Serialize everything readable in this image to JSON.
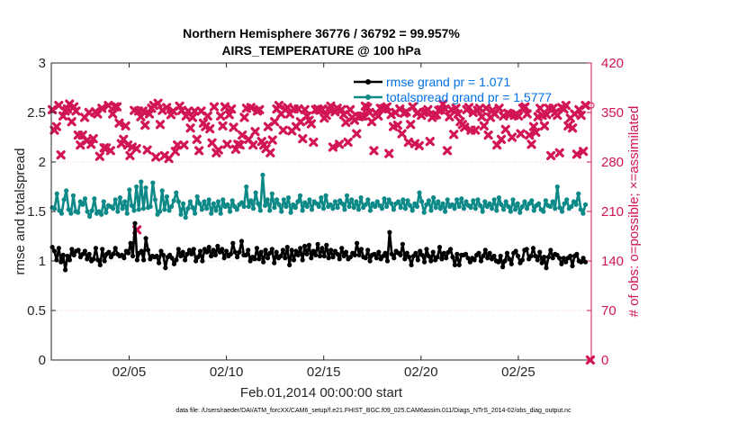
{
  "chart_data": {
    "type": "line",
    "title": "Northern Hemisphere 36776 / 36792 = 99.957%",
    "subtitle": "AIRS_TEMPERATURE @ 100 hPa",
    "xlabel": "Feb.01,2014 00:00:00 start",
    "ylabel": "rmse and totalspread",
    "ylabel_right": "# of obs: o=possible; ×=assimilated",
    "footnote": "data file: /Users/raeder/DAI/ATM_forcXX/CAM6_setup/f.e21.FHIST_BGC.f09_025.CAM6assim.011/Diags_NTrS_2014-02/obs_diag_output.nc",
    "xlim": [
      1,
      28.75
    ],
    "ylim": [
      0,
      3
    ],
    "ylim_right": [
      0,
      420
    ],
    "x_ticks": [
      5,
      10,
      15,
      20,
      25
    ],
    "x_tick_labels": [
      "02/05",
      "02/10",
      "02/15",
      "02/20",
      "02/25"
    ],
    "y_ticks": [
      0,
      0.5,
      1,
      1.5,
      2,
      2.5,
      3
    ],
    "y_tick_labels": [
      "0",
      "0.5",
      "1",
      "1.5",
      "2",
      "2.5",
      "3"
    ],
    "y_right_ticks": [
      0,
      70,
      140,
      210,
      280,
      350,
      420
    ],
    "y_right_tick_labels": [
      "0",
      "70",
      "140",
      "210",
      "280",
      "350",
      "420"
    ],
    "grid": "horizontal dotted",
    "legend_position": "top-right",
    "colors": {
      "rmse": "#000000",
      "totalspread": "#0d8a88",
      "obs": "#d11556",
      "legend_text": "#0072e6"
    },
    "series": [
      {
        "name": "rmse grand pr = 1.071",
        "axis": "left",
        "values": [
          1.14,
          1.1,
          1.01,
          1.13,
          0.99,
          1.06,
          0.91,
          1.05,
          1.01,
          1.12,
          1.06,
          1.1,
          1.11,
          1.04,
          1.07,
          1.1,
          1.02,
          1.07,
          1.0,
          1.02,
          1.13,
          1.01,
          0.96,
          1.12,
          1.0,
          1.07,
          1.09,
          1.04,
          1.07,
          1.13,
          1.07,
          1.05,
          1.06,
          1.03,
          1.1,
          1.08,
          1.18,
          1.05,
          1.38,
          1.01,
          1.08,
          1.1,
          1.01,
          1.23,
          1.11,
          1.02,
          1.05,
          1.04,
          1.05,
          0.98,
          1.1,
          1.06,
          0.93,
          1.04,
          1.06,
          1.03,
          0.97,
          1.01,
          1.12,
          1.05,
          1.09,
          1.01,
          1.07,
          1.11,
          1.07,
          1.12,
          1.0,
          1.04,
          1.1,
          1.0,
          1.12,
          1.09,
          1.14,
          1.05,
          1.11,
          1.06,
          1.15,
          1.09,
          1.12,
          1.03,
          1.1,
          1.05,
          1.07,
          1.18,
          1.09,
          1.04,
          1.09,
          1.2,
          1.06,
          1.06,
          1.11,
          1.0,
          1.04,
          1.02,
          1.13,
          1.02,
          1.09,
          0.99,
          1.11,
          1.03,
          1.08,
          1.12,
          0.98,
          1.09,
          1.03,
          1.05,
          1.11,
          1.03,
          1.14,
          0.96,
          1.11,
          1.01,
          1.1,
          1.06,
          1.13,
          1.01,
          1.15,
          1.07,
          1.16,
          1.03,
          1.1,
          1.06,
          1.17,
          1.05,
          1.13,
          1.05,
          1.16,
          1.03,
          1.11,
          1.04,
          1.1,
          1.07,
          1.02,
          1.13,
          1.05,
          1.09,
          1.02,
          1.04,
          1.08,
          1.06,
          1.18,
          1.06,
          1.12,
          1.04,
          1.03,
          1.11,
          1.0,
          1.06,
          1.07,
          1.03,
          1.09,
          1.02,
          1.05,
          1.08,
          1.0,
          1.29,
          1.07,
          1.03,
          1.1,
          1.08,
          1.06,
          1.17,
          1.02,
          1.08,
          1.04,
          0.96,
          1.05,
          1.08,
          1.01,
          1.1,
          1.06,
          0.99,
          1.12,
          1.05,
          1.0,
          1.09,
          1.01,
          1.04,
          1.14,
          1.02,
          1.08,
          1.03,
          1.09,
          1.12,
          1.04,
          0.96,
          1.07,
          0.96,
          1.06,
          1.06,
          1.07,
          1.03,
          0.99,
          1.03,
          1.01,
          1.06,
          1.08,
          1.0,
          1.05,
          1.11,
          1.03,
          1.08,
          1.02,
          1.05,
          1.0,
          0.99,
          1.05,
          0.94,
          1.0,
          1.08,
          1.02,
          0.97,
          1.08,
          1.1,
          1.05,
          0.98,
          1.01,
          1.11,
          1.12,
          1.02,
          1.05,
          1.13,
          1.05,
          1.01,
          1.09,
          0.98,
          1.04,
          0.93,
          1.04,
          1.11,
          1.03,
          1.07,
          1.06,
          1.03,
          0.97,
          1.03,
          0.99,
          1.03,
          1.05,
          0.95,
          1.05,
          1.07,
          1.0,
          0.99,
          1.03,
          0.99
        ]
      },
      {
        "name": "totalspread grand pr = 1.5777",
        "axis": "left",
        "values": [
          1.54,
          1.53,
          1.68,
          1.51,
          1.48,
          1.62,
          1.71,
          1.52,
          1.48,
          1.66,
          1.5,
          1.49,
          1.6,
          1.57,
          1.63,
          1.5,
          1.45,
          1.51,
          1.63,
          1.48,
          1.5,
          1.47,
          1.6,
          1.49,
          1.56,
          1.55,
          1.53,
          1.62,
          1.5,
          1.64,
          1.53,
          1.6,
          1.48,
          1.72,
          1.56,
          1.51,
          1.75,
          1.52,
          1.8,
          1.53,
          1.74,
          1.54,
          1.55,
          1.79,
          1.62,
          1.47,
          1.5,
          1.71,
          1.52,
          1.65,
          1.51,
          1.55,
          1.61,
          1.69,
          1.6,
          1.47,
          1.58,
          1.44,
          1.53,
          1.6,
          1.54,
          1.48,
          1.65,
          1.58,
          1.52,
          1.6,
          1.53,
          1.62,
          1.48,
          1.58,
          1.51,
          1.6,
          1.48,
          1.62,
          1.55,
          1.57,
          1.5,
          1.61,
          1.55,
          1.52,
          1.57,
          1.59,
          1.55,
          1.75,
          1.55,
          1.61,
          1.53,
          1.69,
          1.58,
          1.51,
          1.87,
          1.56,
          1.62,
          1.51,
          1.68,
          1.54,
          1.62,
          1.57,
          1.5,
          1.62,
          1.55,
          1.64,
          1.49,
          1.57,
          1.54,
          1.6,
          1.66,
          1.51,
          1.59,
          1.55,
          1.62,
          1.52,
          1.6,
          1.58,
          1.55,
          1.64,
          1.53,
          1.66,
          1.55,
          1.57,
          1.53,
          1.6,
          1.54,
          1.61,
          1.58,
          1.52,
          1.66,
          1.55,
          1.62,
          1.54,
          1.6,
          1.52,
          1.64,
          1.54,
          1.57,
          1.62,
          1.51,
          1.58,
          1.55,
          1.6,
          1.56,
          1.53,
          1.63,
          1.55,
          1.62,
          1.58,
          1.52,
          1.58,
          1.6,
          1.54,
          1.62,
          1.53,
          1.61,
          1.56,
          1.51,
          1.58,
          1.55,
          1.69,
          1.6,
          1.49,
          1.57,
          1.61,
          1.51,
          1.64,
          1.54,
          1.6,
          1.53,
          1.58,
          1.5,
          1.62,
          1.55,
          1.57,
          1.53,
          1.62,
          1.55,
          1.63,
          1.53,
          1.6,
          1.56,
          1.54,
          1.61,
          1.53,
          1.62,
          1.56,
          1.5,
          1.6,
          1.55,
          1.58,
          1.53,
          1.62,
          1.51,
          1.64,
          1.57,
          1.52,
          1.6,
          1.55,
          1.5,
          1.62,
          1.52,
          1.58,
          1.49,
          1.55,
          1.6,
          1.53,
          1.58,
          1.61,
          1.51,
          1.56,
          1.58,
          1.52,
          1.5,
          1.61,
          1.56,
          1.55,
          1.6,
          1.53,
          1.75,
          1.54,
          1.5,
          1.58,
          1.62,
          1.53,
          1.55,
          1.6,
          1.57,
          1.68,
          1.52,
          1.48,
          1.57
        ]
      },
      {
        "name": "# of obs assimilated",
        "axis": "right",
        "marker": "x",
        "values": [
          354,
          325,
          330,
          360,
          290,
          345,
          352,
          355,
          362,
          337,
          358,
          352,
          318,
          304,
          318,
          343,
          310,
          350,
          305,
          313,
          351,
          348,
          288,
          356,
          300,
          300,
          360,
          296,
          348,
          358,
          358,
          335,
          306,
          312,
          331,
          304,
          289,
          301,
          353,
          299,
          352,
          344,
          352,
          332,
          297,
          348,
          356,
          360,
          287,
          363,
          333,
          353,
          289,
          357,
          285,
          347,
          352,
          295,
          304,
          359,
          353,
          304,
          345,
          352,
          328,
          343,
          352,
          312,
          296,
          352,
          335,
          330,
          345,
          327,
          307,
          358,
          293,
          297,
          345,
          331,
          358,
          305,
          347,
          355,
          329,
          298,
          305,
          304,
          318,
          343,
          356,
          312,
          357,
          304,
          323,
          352,
          354,
          309,
          304,
          299,
          330,
          293,
          311,
          337,
          355,
          360,
          348,
          325,
          354,
          357,
          348,
          324,
          355,
          330,
          355,
          337,
          313,
          354,
          345,
          339,
          334,
          308,
          354,
          355,
          353,
          354,
          342,
          346,
          355,
          359,
          301,
          351,
          356,
          305,
          354,
          347,
          336,
          308,
          354,
          343,
          339,
          320,
          344,
          345,
          345,
          359,
          357,
          350,
          337,
          296,
          349,
          345,
          356,
          355,
          356,
          358,
          292,
          347,
          330,
          350,
          332,
          355,
          320,
          349,
          351,
          308,
          333,
          358,
          306,
          349,
          303,
          346,
          350,
          351,
          354,
          309,
          343,
          346,
          347,
          353,
          354,
          362,
          355,
          296,
          344,
          354,
          319,
          356,
          348,
          337,
          333,
          329,
          354,
          357,
          325,
          350,
          325,
          353,
          356,
          344,
          331,
          356,
          318,
          343,
          353,
          348,
          304,
          356,
          312,
          345,
          326,
          349,
          347,
          315,
          346,
          348,
          345,
          320,
          356,
          358,
          348,
          318,
          305,
          330,
          322,
          344,
          356,
          346,
          331,
          347,
          356,
          289,
          356,
          350,
          346,
          293,
          357,
          355,
          360,
          331,
          342,
          328,
          348,
          291,
          354,
          346,
          295,
          360
        ]
      },
      {
        "name": "# of obs possible",
        "axis": "right",
        "marker": "o",
        "values": [
          360
        ]
      }
    ],
    "outliers_right": [
      {
        "x": 5.4,
        "y": 184
      },
      {
        "x": 28.7,
        "y": 0
      }
    ]
  }
}
